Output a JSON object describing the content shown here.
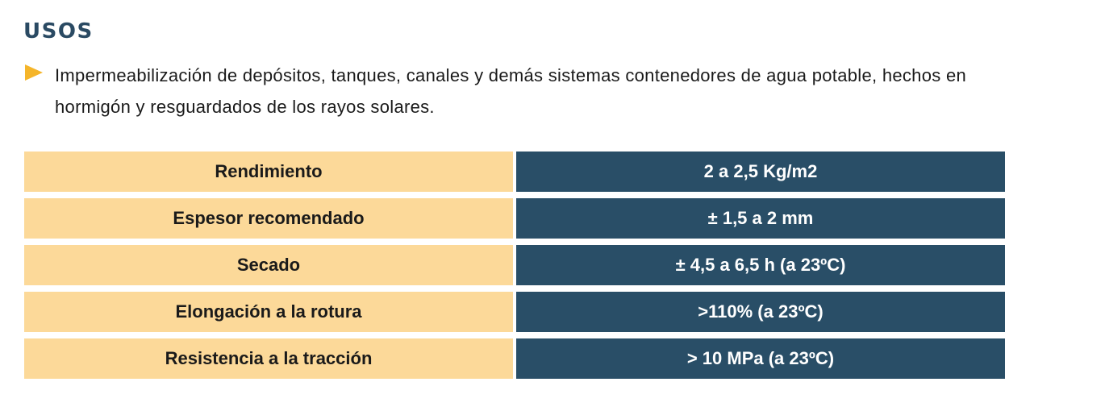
{
  "section": {
    "title": "USOS"
  },
  "uses": {
    "bullet_icon": "triangle-right-icon",
    "bullet_color": "#f5b52a",
    "text": "Impermeabilización de depósitos, tanques, canales y demás sistemas contenedores de agua potable, hechos en hormigón y resguardados de los rayos solares."
  },
  "colors": {
    "title": "#2a4a63",
    "property_cell": "#fcd999",
    "value_cell": "#294e67"
  },
  "specs": [
    {
      "property": "Rendimiento",
      "value": "2 a 2,5 Kg/m2"
    },
    {
      "property": "Espesor recomendado",
      "value": "± 1,5 a 2 mm"
    },
    {
      "property": "Secado",
      "value": "± 4,5 a 6,5 h  (a 23ºC)"
    },
    {
      "property": "Elongación a la rotura",
      "value": ">110%  (a 23ºC)"
    },
    {
      "property": "Resistencia a la tracción",
      "value": "> 10 MPa (a 23ºC)"
    }
  ]
}
